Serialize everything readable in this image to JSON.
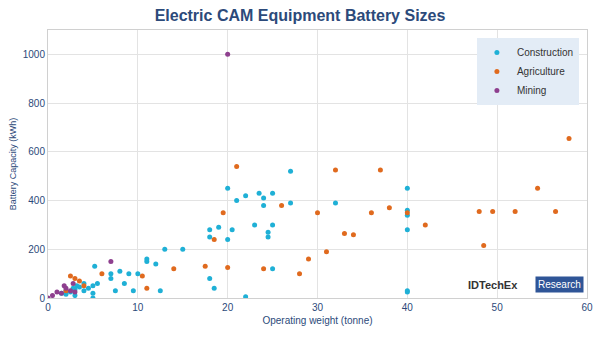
{
  "chart_data": {
    "type": "scatter",
    "title": "Electric CAM Equipment Battery Sizes",
    "x_label": "Operating weight (tonne)",
    "y_label": "Battery Capacity (kWh)",
    "xlim": [
      0,
      60
    ],
    "xticks": [
      0,
      10,
      20,
      30,
      40,
      50,
      60
    ],
    "ylim": [
      0,
      1100
    ],
    "yticks": [
      0,
      200,
      400,
      600,
      800,
      1000
    ],
    "grid": true,
    "legend": "top right",
    "marker": "circle",
    "annotations": [
      "IDTechEx",
      "Research"
    ],
    "series": [
      {
        "name": "Construction",
        "color": "#1fb0d6",
        "x": [
          1.5,
          2,
          2.5,
          2.8,
          3,
          3.2,
          3.5,
          4,
          4,
          4.5,
          5,
          5,
          5.2,
          5.5,
          5,
          3,
          2,
          7,
          7,
          7.5,
          8,
          8.5,
          9,
          9.5,
          10,
          11,
          11,
          12,
          12.5,
          13,
          15,
          18,
          18,
          18,
          18.5,
          19,
          20,
          20,
          20.5,
          21,
          22,
          22,
          23,
          23.5,
          24,
          24,
          24.5,
          24.5,
          25,
          25,
          25,
          27,
          27,
          32,
          40,
          40,
          40,
          40,
          40,
          40
        ],
        "y": [
          20,
          30,
          25,
          40,
          35,
          50,
          45,
          30,
          60,
          40,
          20,
          50,
          130,
          60,
          0,
          10,
          15,
          100,
          80,
          30,
          110,
          60,
          100,
          30,
          100,
          150,
          160,
          140,
          30,
          200,
          200,
          280,
          250,
          80,
          40,
          290,
          450,
          240,
          280,
          400,
          420,
          5,
          300,
          430,
          410,
          380,
          270,
          250,
          430,
          300,
          120,
          520,
          390,
          390,
          450,
          360,
          340,
          280,
          30,
          25
        ]
      },
      {
        "name": "Agriculture",
        "color": "#e06a1e",
        "x": [
          2,
          2.5,
          3,
          3.5,
          4,
          6,
          10.5,
          11,
          14,
          17.5,
          18.5,
          19.5,
          20,
          21,
          24,
          26,
          28,
          29,
          30,
          31,
          32,
          33,
          34,
          36,
          37,
          38,
          40,
          42,
          48,
          48.5,
          49.5,
          52,
          54.5,
          56.5,
          58
        ],
        "y": [
          30,
          90,
          80,
          70,
          50,
          100,
          90,
          40,
          120,
          130,
          240,
          350,
          125,
          540,
          120,
          380,
          100,
          160,
          350,
          190,
          525,
          265,
          260,
          350,
          525,
          370,
          350,
          300,
          355,
          215,
          355,
          355,
          450,
          355,
          655
        ]
      },
      {
        "name": "Mining",
        "color": "#8e3f8e",
        "x": [
          0,
          0.5,
          1,
          1.5,
          1.8,
          2,
          2.5,
          2.8,
          3,
          7,
          20
        ],
        "y": [
          0,
          10,
          25,
          20,
          50,
          40,
          30,
          60,
          25,
          150,
          1000
        ]
      }
    ]
  }
}
